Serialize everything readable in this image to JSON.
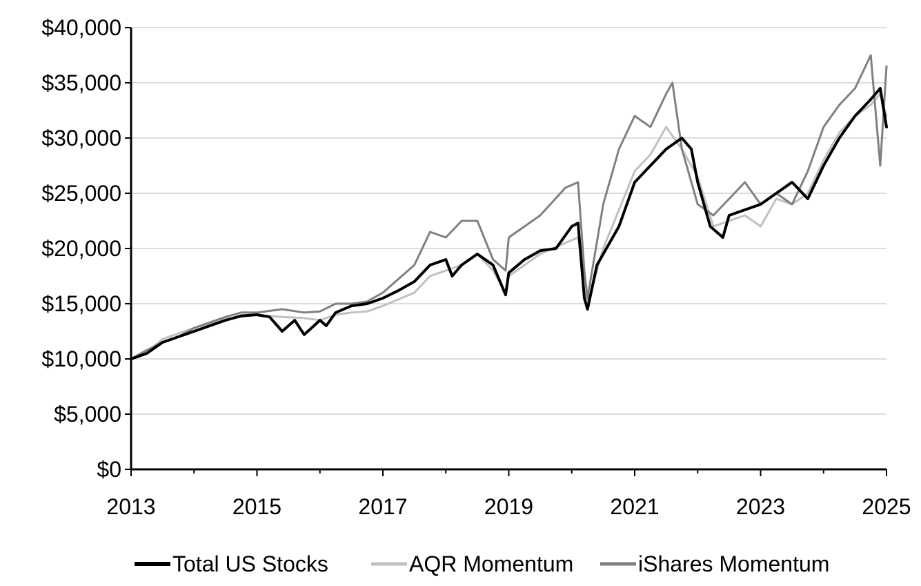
{
  "chart_data": {
    "type": "line",
    "title": "",
    "xlabel": "",
    "ylabel": "",
    "xlim": [
      2013,
      2025
    ],
    "ylim": [
      0,
      40000
    ],
    "x_ticks": [
      2013,
      2015,
      2017,
      2019,
      2021,
      2023,
      2025
    ],
    "x_tick_labels": [
      "2013",
      "2015",
      "2017",
      "2019",
      "2021",
      "2023",
      "2025"
    ],
    "y_ticks": [
      0,
      5000,
      10000,
      15000,
      20000,
      25000,
      30000,
      35000,
      40000
    ],
    "y_tick_labels": [
      "$0",
      "$5,000",
      "$10,000",
      "$15,000",
      "$20,000",
      "$25,000",
      "$30,000",
      "$35,000",
      "$40,000"
    ],
    "grid": "horizontal",
    "legend_position": "bottom",
    "colors": {
      "Total US Stocks": "#000000",
      "AQR Momentum": "#c0c0c0",
      "iShares Momentum": "#808080"
    },
    "series": [
      {
        "name": "Total US Stocks",
        "x": [
          2013.0,
          2013.25,
          2013.5,
          2013.75,
          2014.0,
          2014.25,
          2014.5,
          2014.75,
          2015.0,
          2015.2,
          2015.4,
          2015.6,
          2015.75,
          2016.0,
          2016.1,
          2016.25,
          2016.5,
          2016.75,
          2017.0,
          2017.25,
          2017.5,
          2017.75,
          2018.0,
          2018.1,
          2018.25,
          2018.5,
          2018.75,
          2018.95,
          2019.0,
          2019.25,
          2019.5,
          2019.75,
          2020.0,
          2020.1,
          2020.2,
          2020.25,
          2020.4,
          2020.5,
          2020.75,
          2021.0,
          2021.25,
          2021.5,
          2021.75,
          2021.9,
          2022.0,
          2022.2,
          2022.4,
          2022.5,
          2022.75,
          2023.0,
          2023.25,
          2023.5,
          2023.75,
          2024.0,
          2024.25,
          2024.5,
          2024.75,
          2024.9,
          2025.0
        ],
        "values": [
          10000,
          10500,
          11500,
          12000,
          12500,
          13000,
          13500,
          13900,
          14000,
          13800,
          12500,
          13500,
          12200,
          13500,
          13000,
          14200,
          14800,
          15000,
          15500,
          16200,
          17000,
          18500,
          19000,
          17500,
          18500,
          19500,
          18500,
          15800,
          17800,
          19000,
          19800,
          20000,
          22000,
          22300,
          15500,
          14500,
          18500,
          19500,
          22000,
          26000,
          27500,
          29000,
          30000,
          29000,
          26000,
          22000,
          21000,
          23000,
          23500,
          24000,
          25000,
          26000,
          24500,
          27500,
          30000,
          32000,
          33500,
          34500,
          31000
        ]
      },
      {
        "name": "AQR Momentum",
        "x": [
          2013.0,
          2013.25,
          2013.5,
          2013.75,
          2014.0,
          2014.25,
          2014.5,
          2014.75,
          2015.0,
          2015.4,
          2015.75,
          2016.0,
          2016.25,
          2016.5,
          2016.75,
          2017.0,
          2017.5,
          2017.75,
          2018.0,
          2018.25,
          2018.5,
          2018.75,
          2018.95,
          2019.0,
          2019.5,
          2019.9,
          2020.1,
          2020.2,
          2020.25,
          2020.5,
          2020.75,
          2021.0,
          2021.25,
          2021.5,
          2021.75,
          2022.0,
          2022.25,
          2022.5,
          2022.75,
          2023.0,
          2023.25,
          2023.5,
          2023.75,
          2024.0,
          2024.25,
          2024.5,
          2024.75,
          2024.9,
          2025.0
        ],
        "values": [
          10000,
          10600,
          11800,
          12300,
          12800,
          13200,
          13600,
          13800,
          14000,
          13800,
          13700,
          13500,
          14000,
          14200,
          14300,
          14800,
          16000,
          17500,
          18000,
          18500,
          19500,
          18000,
          16000,
          17500,
          19500,
          20500,
          21000,
          17000,
          15000,
          20000,
          23500,
          27000,
          28500,
          31000,
          29000,
          26500,
          22000,
          22500,
          23000,
          22000,
          24500,
          24000,
          25000,
          28000,
          30500,
          32000,
          33000,
          34000,
          32000
        ]
      },
      {
        "name": "iShares Momentum",
        "x": [
          2013.0,
          2013.25,
          2013.5,
          2013.75,
          2014.0,
          2014.25,
          2014.5,
          2014.75,
          2015.0,
          2015.4,
          2015.75,
          2016.0,
          2016.25,
          2016.5,
          2016.75,
          2017.0,
          2017.5,
          2017.75,
          2018.0,
          2018.25,
          2018.5,
          2018.75,
          2018.95,
          2019.0,
          2019.5,
          2019.9,
          2020.1,
          2020.2,
          2020.25,
          2020.5,
          2020.75,
          2021.0,
          2021.25,
          2021.5,
          2021.6,
          2021.75,
          2022.0,
          2022.25,
          2022.5,
          2022.75,
          2023.0,
          2023.25,
          2023.5,
          2023.75,
          2024.0,
          2024.25,
          2024.5,
          2024.75,
          2024.9,
          2025.0
        ],
        "values": [
          10000,
          10800,
          11500,
          12000,
          12800,
          13300,
          13800,
          14200,
          14200,
          14500,
          14200,
          14300,
          15000,
          15000,
          15200,
          16000,
          18500,
          21500,
          21000,
          22500,
          22500,
          19000,
          18000,
          21000,
          23000,
          25500,
          26000,
          18000,
          15500,
          24000,
          29000,
          32000,
          31000,
          34000,
          35000,
          29000,
          24000,
          23000,
          24500,
          26000,
          24000,
          25000,
          24000,
          27000,
          31000,
          33000,
          34500,
          37500,
          27500,
          36500
        ]
      }
    ]
  }
}
